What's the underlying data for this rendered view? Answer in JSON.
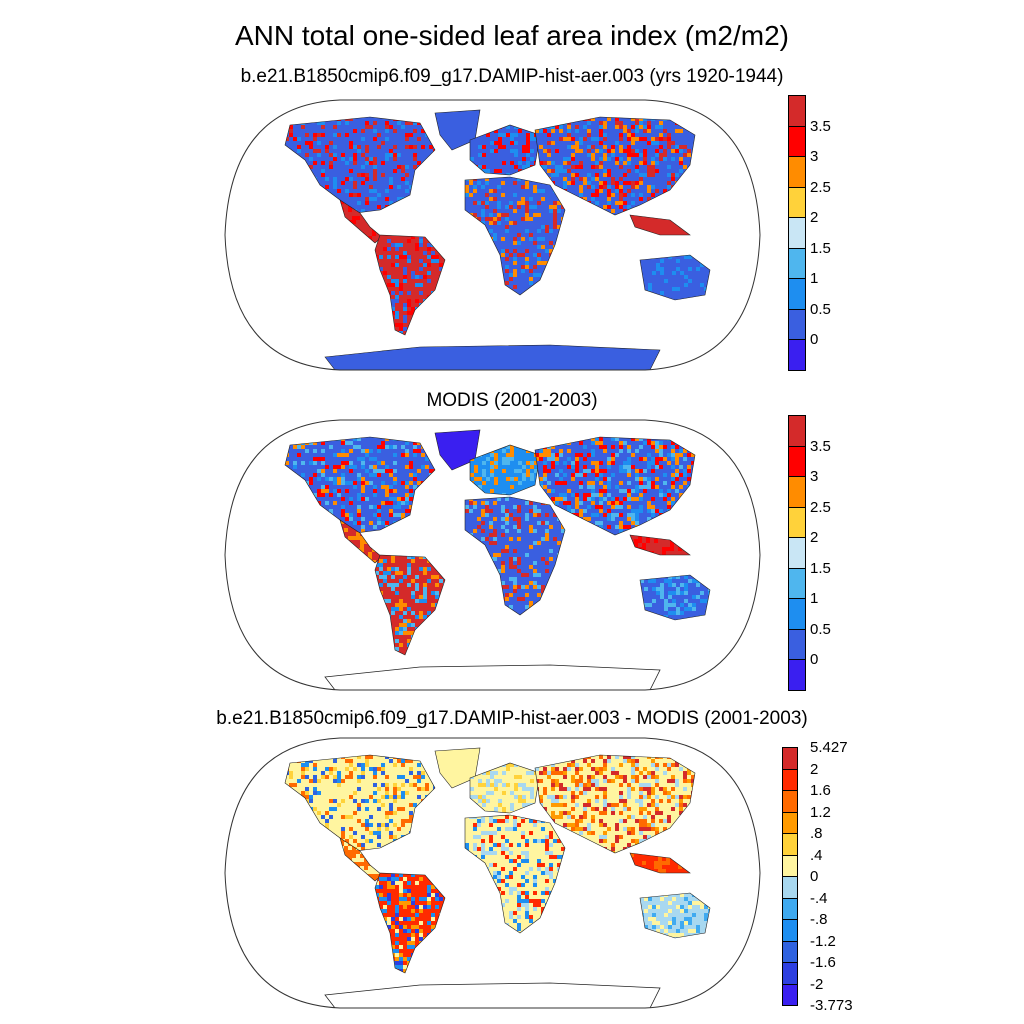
{
  "title": "ANN total one-sided leaf area index (m2/m2)",
  "panels": [
    {
      "id": "model",
      "subtitle": "b.e21.B1850cmip6.f09_g17.DAMIP-hist-aer.003 (yrs 1920-1944)",
      "palette": "lai"
    },
    {
      "id": "obs",
      "subtitle": "MODIS (2001-2003)",
      "palette": "lai"
    },
    {
      "id": "diff",
      "subtitle": "b.e21.B1850cmip6.f09_g17.DAMIP-hist-aer.003 - MODIS (2001-2003)",
      "palette": "diff"
    }
  ],
  "colorbars": {
    "lai": {
      "colors": [
        "#3a1ff0",
        "#3a5fe0",
        "#1e8ef0",
        "#4fb6ee",
        "#c9e6f5",
        "#ffd23a",
        "#ff8c00",
        "#ff0000",
        "#d42a2a"
      ],
      "labels": [
        "0",
        "0.5",
        "1",
        "1.5",
        "2",
        "2.5",
        "3",
        "3.5"
      ]
    },
    "diff": {
      "colors": [
        "#3a1ff0",
        "#2d3fe0",
        "#2f62e0",
        "#1e8ef0",
        "#3faaf0",
        "#a8d8f0",
        "#fff5a0",
        "#ffd23a",
        "#ff9a00",
        "#ff6a00",
        "#ff2a00",
        "#d42a2a"
      ],
      "labels": [
        "5.427",
        "2",
        "1.6",
        "1.2",
        ".8",
        ".4",
        "0",
        "-.4",
        "-.8",
        "-1.2",
        "-1.6",
        "-2",
        "-3.773"
      ]
    }
  },
  "map_style": {
    "ocean": "#ffffff",
    "outline": "#333333",
    "coast": "#222222"
  }
}
